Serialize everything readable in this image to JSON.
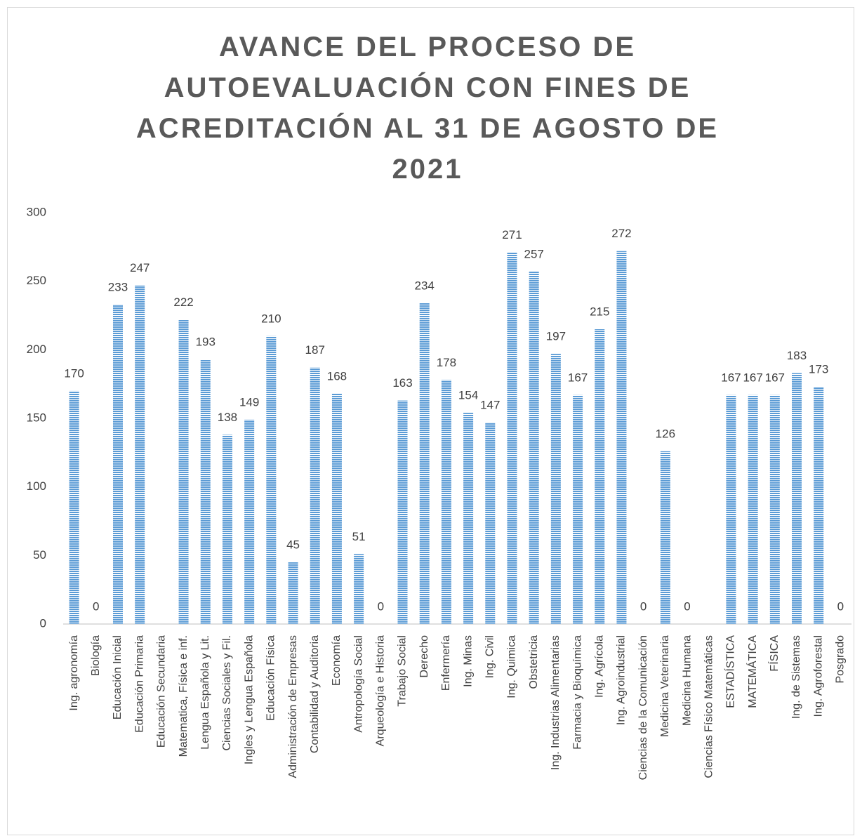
{
  "chart_data": {
    "type": "bar",
    "title": "AVANCE DEL PROCESO DE AUTOEVALUACIÓN CON FINES DE ACREDITACIÓN AL 31 DE AGOSTO DE 2021",
    "categories": [
      "Ing. agronomía",
      "Biología",
      "Educación Inicial",
      "Educación Primaria",
      "Educación Secundaria",
      "Matematica, Física e inf.",
      "Lengua Española y Lit.",
      "Ciencias Sociales y Fil.",
      "Ingles y Lengua Española",
      "Educación Física",
      "Administración de Empresas",
      "Contabilidad y Auditoria",
      "Economía",
      "Antropología Social",
      "Arqueología e Historia",
      "Trabajo Social",
      "Derecho",
      "Enfermería",
      "Ing. Minas",
      "Ing. Civil",
      "Ing. Quimica",
      "Obstetricia",
      "Ing. Industrias Alimentarias",
      "Farmacia y Bioquímica",
      "Ing. Agrícola",
      "Ing. Agroindustrial",
      "Ciencias de la Comunicación",
      "Medicina Veterinaria",
      "Medicina Humana",
      "Ciencias Físico Matemáticas",
      "ESTADÍSTICA",
      "MATEMÁTICA",
      "FÍSICA",
      "Ing. de Sistemas",
      "Ing. Agroforestal",
      "Posgrado"
    ],
    "values": [
      170,
      0,
      233,
      247,
      null,
      222,
      193,
      138,
      149,
      210,
      45,
      187,
      168,
      51,
      0,
      163,
      234,
      178,
      154,
      147,
      271,
      257,
      197,
      167,
      215,
      272,
      0,
      126,
      0,
      null,
      167,
      167,
      167,
      183,
      173,
      0
    ],
    "color": "#5b9bd5",
    "ylim": [
      0,
      300
    ],
    "yticks": [
      0,
      50,
      100,
      150,
      200,
      250,
      300
    ],
    "grid": false
  }
}
